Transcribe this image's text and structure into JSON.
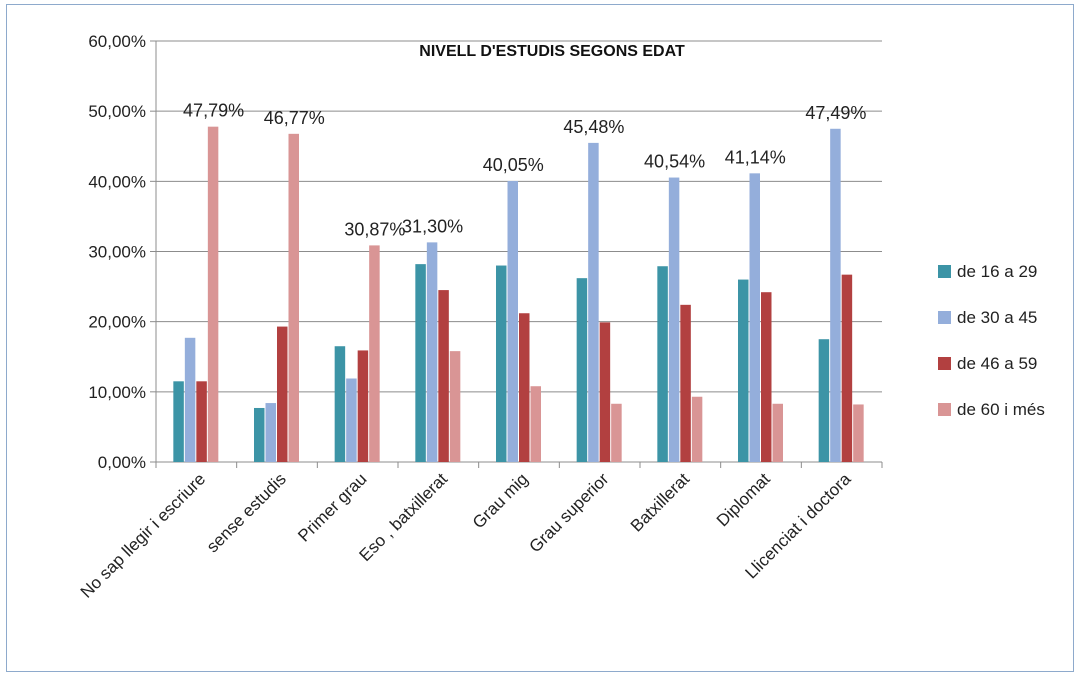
{
  "chart_data": {
    "type": "bar",
    "title": "NIVELL D'ESTUDIS SEGONS EDAT",
    "xlabel": "",
    "ylabel": "",
    "ylim": [
      0,
      60
    ],
    "yticks": [
      "0,00%",
      "10,00%",
      "20,00%",
      "30,00%",
      "40,00%",
      "50,00%",
      "60,00%"
    ],
    "grid": true,
    "legend_position": "right",
    "categories": [
      "No sap llegir i escriure",
      "sense estudis",
      "Primer grau",
      "Eso , batxillerat",
      "Grau mig",
      "Grau superior",
      "Batxillerat",
      "Diplomat",
      "Llicenciat i doctora"
    ],
    "series": [
      {
        "name": "de 16 a 29",
        "color": "#3c94a6",
        "values": [
          11.5,
          7.7,
          16.5,
          28.2,
          28.0,
          26.2,
          27.9,
          26.0,
          17.5
        ]
      },
      {
        "name": "de 30 a 45",
        "color": "#94aedb",
        "values": [
          17.7,
          8.4,
          11.9,
          31.3,
          40.05,
          45.48,
          40.54,
          41.14,
          47.49
        ]
      },
      {
        "name": "de 46 a 59",
        "color": "#b24040",
        "values": [
          11.5,
          19.3,
          15.9,
          24.5,
          21.2,
          19.9,
          22.4,
          24.2,
          26.7
        ]
      },
      {
        "name": "de 60 i més",
        "color": "#d99595",
        "values": [
          47.79,
          46.77,
          30.87,
          15.8,
          10.8,
          8.3,
          9.3,
          8.3,
          8.2
        ]
      }
    ],
    "data_labels": [
      {
        "category": 0,
        "series": 3,
        "text": "47,79%"
      },
      {
        "category": 1,
        "series": 3,
        "text": "46,77%"
      },
      {
        "category": 2,
        "series": 3,
        "text": "30,87%"
      },
      {
        "category": 3,
        "series": 1,
        "text": "31,30%"
      },
      {
        "category": 4,
        "series": 1,
        "text": "40,05%"
      },
      {
        "category": 5,
        "series": 1,
        "text": "45,48%"
      },
      {
        "category": 6,
        "series": 1,
        "text": "40,54%"
      },
      {
        "category": 7,
        "series": 1,
        "text": "41,14%"
      },
      {
        "category": 8,
        "series": 1,
        "text": "47,49%"
      }
    ]
  }
}
